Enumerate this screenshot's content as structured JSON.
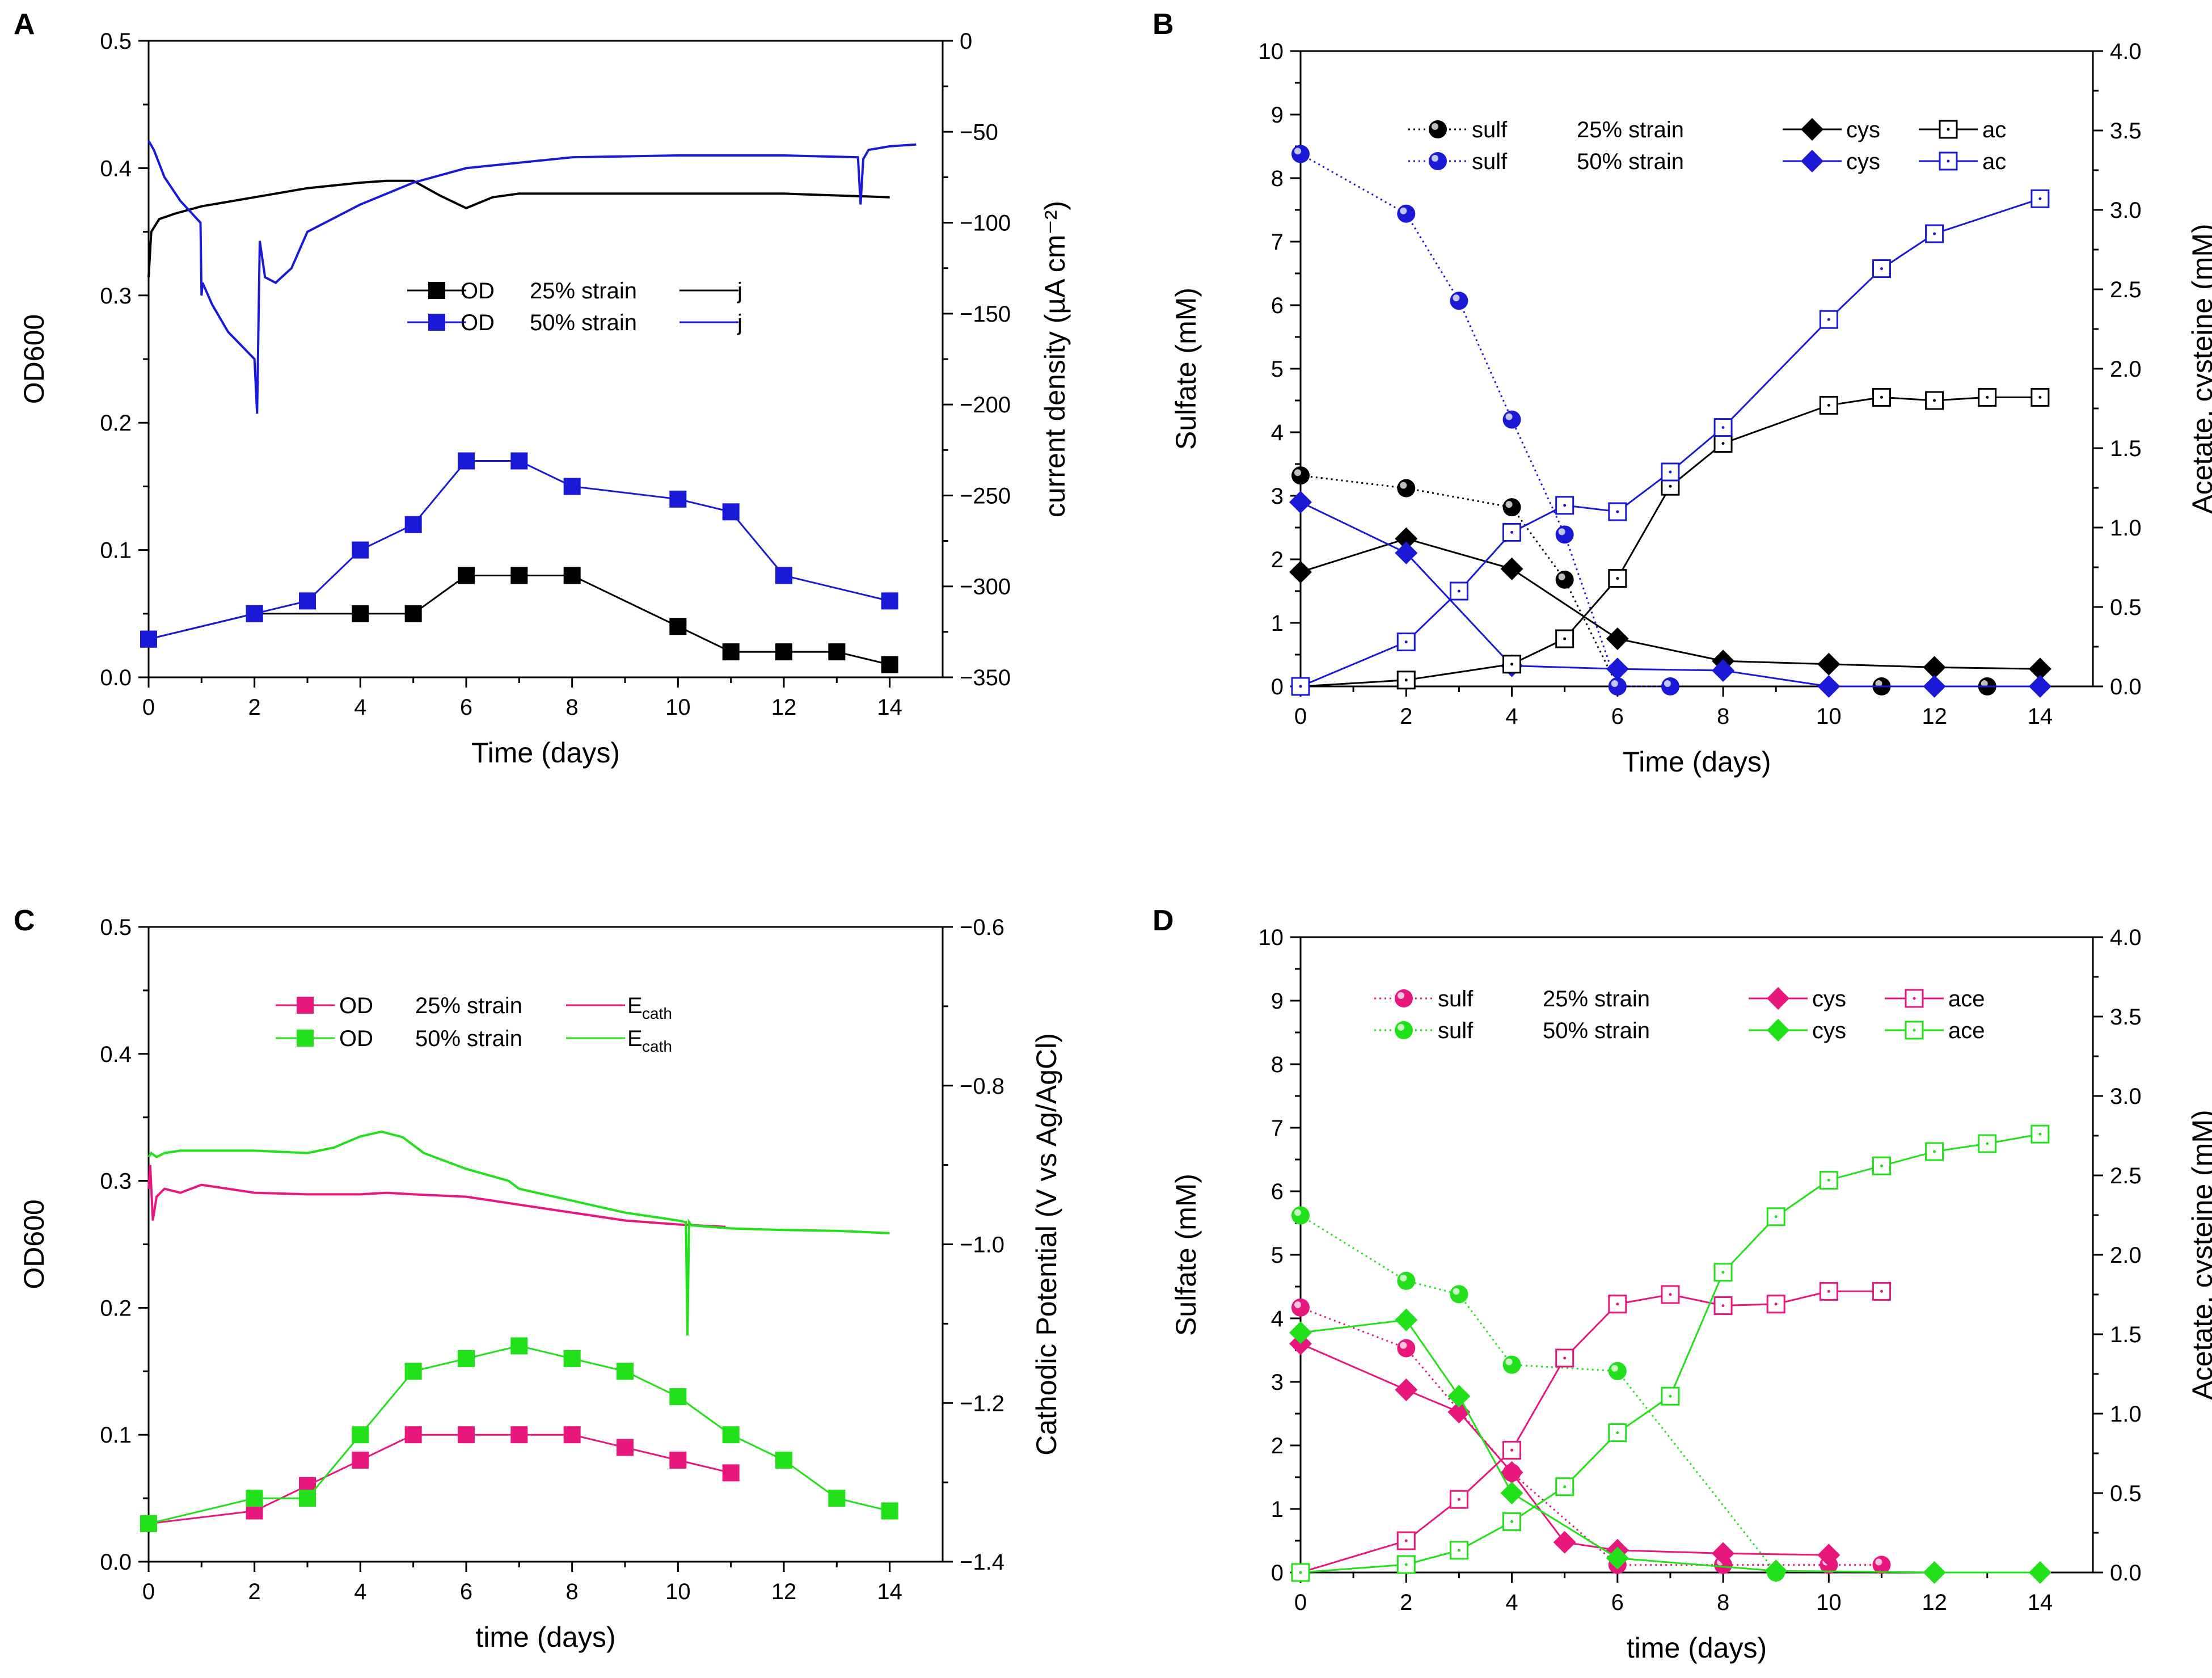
{
  "colors": {
    "black": "#000000",
    "blue": "#1a1ad6",
    "pink": "#e8177d",
    "green": "#22e01a"
  },
  "chart_data": [
    {
      "panel": "A",
      "type": "line",
      "xlabel": "Time (days)",
      "ylabel": "OD600",
      "y2label": "current density (µA cm⁻²)",
      "xlim": [
        0,
        15
      ],
      "ylim": [
        0,
        0.5
      ],
      "y2lim": [
        -350,
        0
      ],
      "xticks": [
        0,
        2,
        4,
        6,
        8,
        10,
        12,
        14
      ],
      "yticks": [
        0.0,
        0.1,
        0.2,
        0.3,
        0.4,
        0.5
      ],
      "y2ticks": [
        0,
        -50,
        -100,
        -150,
        -200,
        -250,
        -300,
        -350
      ],
      "legend_labels": {
        "od": "OD",
        "j": "j",
        "strain25": "25% strain",
        "strain50": "50% strain"
      },
      "series": [
        {
          "name": "OD 25% strain",
          "axis": "left",
          "color": "#000000",
          "marker": "square",
          "line": "solid",
          "x": [
            0,
            2,
            4,
            5,
            6,
            7,
            8,
            10,
            11,
            12,
            13,
            14
          ],
          "y": [
            0.03,
            0.05,
            0.05,
            0.05,
            0.08,
            0.08,
            0.08,
            0.04,
            0.02,
            0.02,
            0.02,
            0.01
          ]
        },
        {
          "name": "OD 50% strain",
          "axis": "left",
          "color": "#1a1ad6",
          "marker": "square",
          "line": "solid",
          "x": [
            0,
            2,
            3,
            4,
            5,
            6,
            7,
            8,
            10,
            11,
            12,
            14
          ],
          "y": [
            0.03,
            0.05,
            0.06,
            0.1,
            0.12,
            0.17,
            0.17,
            0.15,
            0.14,
            0.13,
            0.08,
            0.06
          ]
        },
        {
          "name": "j 25% strain",
          "axis": "right",
          "color": "#000000",
          "marker": "none",
          "line": "solid",
          "x": [
            0,
            0.05,
            0.2,
            0.5,
            1,
            2,
            3,
            4,
            4.5,
            5,
            5.5,
            6,
            6.5,
            7,
            8,
            10,
            12,
            14
          ],
          "y": [
            -130,
            -105,
            -98,
            -95,
            -91,
            -86,
            -81,
            -78,
            -77,
            -77,
            -85,
            -92,
            -86,
            -84,
            -84,
            -84,
            -84,
            -86
          ]
        },
        {
          "name": "j 50% strain",
          "axis": "right",
          "color": "#1a1ad6",
          "marker": "none",
          "line": "solid",
          "x": [
            0,
            0.1,
            0.3,
            0.6,
            0.98,
            1.0,
            1.02,
            1.2,
            1.5,
            2.0,
            2.05,
            2.1,
            2.2,
            2.4,
            2.7,
            3,
            4,
            5,
            6,
            8,
            10,
            12,
            13.4,
            13.45,
            13.5,
            13.6,
            14,
            14.5
          ],
          "y": [
            -55,
            -60,
            -75,
            -88,
            -100,
            -140,
            -133,
            -145,
            -160,
            -175,
            -205,
            -110,
            -130,
            -133,
            -125,
            -105,
            -90,
            -78,
            -70,
            -64,
            -63,
            -63,
            -64,
            -90,
            -65,
            -60,
            -58,
            -57
          ]
        }
      ]
    },
    {
      "panel": "B",
      "type": "line",
      "xlabel": "Time (days)",
      "ylabel": "Sulfate (mM)",
      "y2label": "Acetate, cysteine (mM)",
      "xlim": [
        0,
        15
      ],
      "ylim": [
        0,
        10
      ],
      "y2lim": [
        0,
        4
      ],
      "xticks": [
        0,
        2,
        4,
        6,
        8,
        10,
        12,
        14
      ],
      "yticks": [
        0,
        1,
        2,
        3,
        4,
        5,
        6,
        7,
        8,
        9,
        10
      ],
      "y2ticks": [
        0.0,
        0.5,
        1.0,
        1.5,
        2.0,
        2.5,
        3.0,
        3.5,
        4.0
      ],
      "legend_labels": {
        "sulf": "sulf",
        "cys": "cys",
        "ac": "ac",
        "strain25": "25% strain",
        "strain50": "50% strain"
      },
      "series": [
        {
          "name": "sulf 25% strain",
          "axis": "left",
          "color": "#000000",
          "marker": "sphere",
          "line": "dotted",
          "x": [
            0,
            2,
            4,
            5,
            6,
            11,
            13
          ],
          "y": [
            3.32,
            3.12,
            2.82,
            1.68,
            0.0,
            0.0,
            0.0
          ]
        },
        {
          "name": "sulf 50% strain",
          "axis": "left",
          "color": "#1a1ad6",
          "marker": "sphere",
          "line": "dotted",
          "x": [
            0,
            2,
            3,
            4,
            5,
            6,
            7
          ],
          "y": [
            8.38,
            7.44,
            6.07,
            4.2,
            2.39,
            0.0,
            0.0
          ]
        },
        {
          "name": "cys 25% strain",
          "axis": "right",
          "color": "#000000",
          "marker": "diamond",
          "line": "solid",
          "x": [
            0,
            2,
            4,
            6,
            8,
            10,
            12,
            14
          ],
          "y": [
            0.72,
            0.93,
            0.74,
            0.3,
            0.16,
            0.14,
            0.12,
            0.11
          ]
        },
        {
          "name": "cys 50% strain",
          "axis": "right",
          "color": "#1a1ad6",
          "marker": "diamond",
          "line": "solid",
          "x": [
            0,
            2,
            4,
            6,
            8,
            10,
            12,
            14
          ],
          "y": [
            1.16,
            0.84,
            0.13,
            0.11,
            0.1,
            0.0,
            0.0,
            0.0
          ]
        },
        {
          "name": "ac 25% strain",
          "axis": "right",
          "color": "#000000",
          "marker": "open-square",
          "line": "solid",
          "x": [
            0,
            2,
            4,
            5,
            6,
            7,
            8,
            10,
            11,
            12,
            13,
            14
          ],
          "y": [
            0.0,
            0.04,
            0.14,
            0.3,
            0.68,
            1.26,
            1.53,
            1.77,
            1.82,
            1.8,
            1.82,
            1.82
          ]
        },
        {
          "name": "ac 50% strain",
          "axis": "right",
          "color": "#1a1ad6",
          "marker": "open-square",
          "line": "solid",
          "x": [
            0,
            2,
            3,
            4,
            5,
            6,
            7,
            8,
            10,
            11,
            12,
            14
          ],
          "y": [
            0.0,
            0.28,
            0.6,
            0.97,
            1.14,
            1.1,
            1.35,
            1.63,
            2.31,
            2.63,
            2.85,
            3.07
          ]
        }
      ]
    },
    {
      "panel": "C",
      "type": "line",
      "xlabel": "time (days)",
      "ylabel": "OD600",
      "y2label": "Cathodic Potential (V vs Ag/AgCl)",
      "xlim": [
        0,
        15
      ],
      "ylim": [
        0,
        0.5
      ],
      "y2lim": [
        -1.4,
        -0.6
      ],
      "xticks": [
        0,
        2,
        4,
        6,
        8,
        10,
        12,
        14
      ],
      "yticks": [
        0.0,
        0.1,
        0.2,
        0.3,
        0.4,
        0.5
      ],
      "y2ticks": [
        -0.6,
        -0.8,
        -1.0,
        -1.2,
        -1.4
      ],
      "legend_labels": {
        "od": "OD",
        "e": "E",
        "e_sub": "cath",
        "strain25": "25% strain",
        "strain50": "50% strain"
      },
      "series": [
        {
          "name": "OD 25% strain",
          "axis": "left",
          "color": "#e8177d",
          "marker": "square",
          "line": "solid",
          "x": [
            0,
            2,
            3,
            4,
            5,
            6,
            7,
            8,
            9,
            10,
            11
          ],
          "y": [
            0.03,
            0.04,
            0.06,
            0.08,
            0.1,
            0.1,
            0.1,
            0.1,
            0.09,
            0.08,
            0.07
          ]
        },
        {
          "name": "OD 50% strain",
          "axis": "left",
          "color": "#22e01a",
          "marker": "square",
          "line": "solid",
          "x": [
            0,
            2,
            3,
            4,
            5,
            6,
            7,
            8,
            9,
            10,
            11,
            12,
            13,
            14
          ],
          "y": [
            0.03,
            0.05,
            0.05,
            0.1,
            0.15,
            0.16,
            0.17,
            0.16,
            0.15,
            0.13,
            0.1,
            0.08,
            0.05,
            0.04
          ]
        },
        {
          "name": "Ecath 25% strain",
          "axis": "right",
          "color": "#e8177d",
          "marker": "none",
          "line": "solid",
          "x": [
            0,
            0.03,
            0.08,
            0.15,
            0.3,
            0.6,
            1.0,
            1.5,
            2,
            3,
            4,
            4.5,
            5,
            6,
            7,
            8,
            9,
            10,
            10.9
          ],
          "y": [
            -0.93,
            -0.9,
            -0.97,
            -0.94,
            -0.93,
            -0.935,
            -0.925,
            -0.93,
            -0.935,
            -0.937,
            -0.937,
            -0.935,
            -0.937,
            -0.94,
            -0.95,
            -0.96,
            -0.97,
            -0.975,
            -0.978
          ]
        },
        {
          "name": "Ecath 50% strain",
          "axis": "right",
          "color": "#22e01a",
          "marker": "none",
          "line": "solid",
          "x": [
            0,
            0.05,
            0.15,
            0.3,
            0.6,
            1,
            2,
            3,
            3.5,
            4,
            4.4,
            4.8,
            5.2,
            6,
            6.8,
            7,
            8,
            9,
            10,
            10.15,
            10.18,
            10.21,
            10.25,
            11,
            12,
            13,
            14
          ],
          "y": [
            -0.89,
            -0.885,
            -0.89,
            -0.885,
            -0.882,
            -0.882,
            -0.882,
            -0.885,
            -0.878,
            -0.864,
            -0.858,
            -0.865,
            -0.885,
            -0.905,
            -0.92,
            -0.93,
            -0.945,
            -0.96,
            -0.97,
            -0.972,
            -1.115,
            -0.972,
            -0.976,
            -0.98,
            -0.982,
            -0.983,
            -0.986
          ]
        }
      ]
    },
    {
      "panel": "D",
      "type": "line",
      "xlabel": "time (days)",
      "ylabel": "Sulfate (mM)",
      "y2label": "Acetate, cysteine (mM)",
      "xlim": [
        0,
        15
      ],
      "ylim": [
        0,
        10
      ],
      "y2lim": [
        0,
        4
      ],
      "xticks": [
        0,
        2,
        4,
        6,
        8,
        10,
        12,
        14
      ],
      "yticks": [
        0,
        1,
        2,
        3,
        4,
        5,
        6,
        7,
        8,
        9,
        10
      ],
      "y2ticks": [
        0.0,
        0.5,
        1.0,
        1.5,
        2.0,
        2.5,
        3.0,
        3.5,
        4.0
      ],
      "legend_labels": {
        "sulf": "sulf",
        "cys": "cys",
        "ace": "ace",
        "strain25": "25% strain",
        "strain50": "50% strain"
      },
      "series": [
        {
          "name": "sulf 25% strain",
          "axis": "left",
          "color": "#e8177d",
          "marker": "sphere",
          "line": "dotted",
          "x": [
            0,
            2,
            4,
            6,
            8,
            10,
            11
          ],
          "y": [
            4.17,
            3.53,
            1.57,
            0.12,
            0.12,
            0.12,
            0.12
          ]
        },
        {
          "name": "sulf 50% strain",
          "axis": "left",
          "color": "#22e01a",
          "marker": "sphere",
          "line": "dotted",
          "x": [
            0,
            2,
            3,
            4,
            6,
            9
          ],
          "y": [
            5.62,
            4.59,
            4.38,
            3.27,
            3.17,
            0.0
          ]
        },
        {
          "name": "cys 25% strain",
          "axis": "right",
          "color": "#e8177d",
          "marker": "diamond",
          "line": "solid",
          "x": [
            0,
            2,
            3,
            4,
            5,
            6,
            8,
            10
          ],
          "y": [
            1.44,
            1.15,
            1.01,
            0.63,
            0.19,
            0.14,
            0.12,
            0.11
          ]
        },
        {
          "name": "cys 50% strain",
          "axis": "right",
          "color": "#22e01a",
          "marker": "diamond",
          "line": "solid",
          "x": [
            0,
            2,
            3,
            4,
            6,
            9,
            12,
            14
          ],
          "y": [
            1.51,
            1.59,
            1.11,
            0.5,
            0.09,
            0.01,
            0.0,
            0.0
          ]
        },
        {
          "name": "ace 25% strain",
          "axis": "right",
          "color": "#e8177d",
          "marker": "open-square",
          "line": "solid",
          "x": [
            0,
            2,
            3,
            4,
            5,
            6,
            7,
            8,
            9,
            10,
            11
          ],
          "y": [
            0.0,
            0.2,
            0.46,
            0.77,
            1.35,
            1.69,
            1.75,
            1.68,
            1.69,
            1.77,
            1.77
          ]
        },
        {
          "name": "ace 50% strain",
          "axis": "right",
          "color": "#22e01a",
          "marker": "open-square",
          "line": "solid",
          "x": [
            0,
            2,
            3,
            4,
            5,
            6,
            7,
            8,
            9,
            10,
            11,
            12,
            13,
            14
          ],
          "y": [
            0.0,
            0.05,
            0.14,
            0.32,
            0.54,
            0.88,
            1.11,
            1.89,
            2.24,
            2.47,
            2.56,
            2.65,
            2.7,
            2.76
          ]
        }
      ]
    }
  ]
}
